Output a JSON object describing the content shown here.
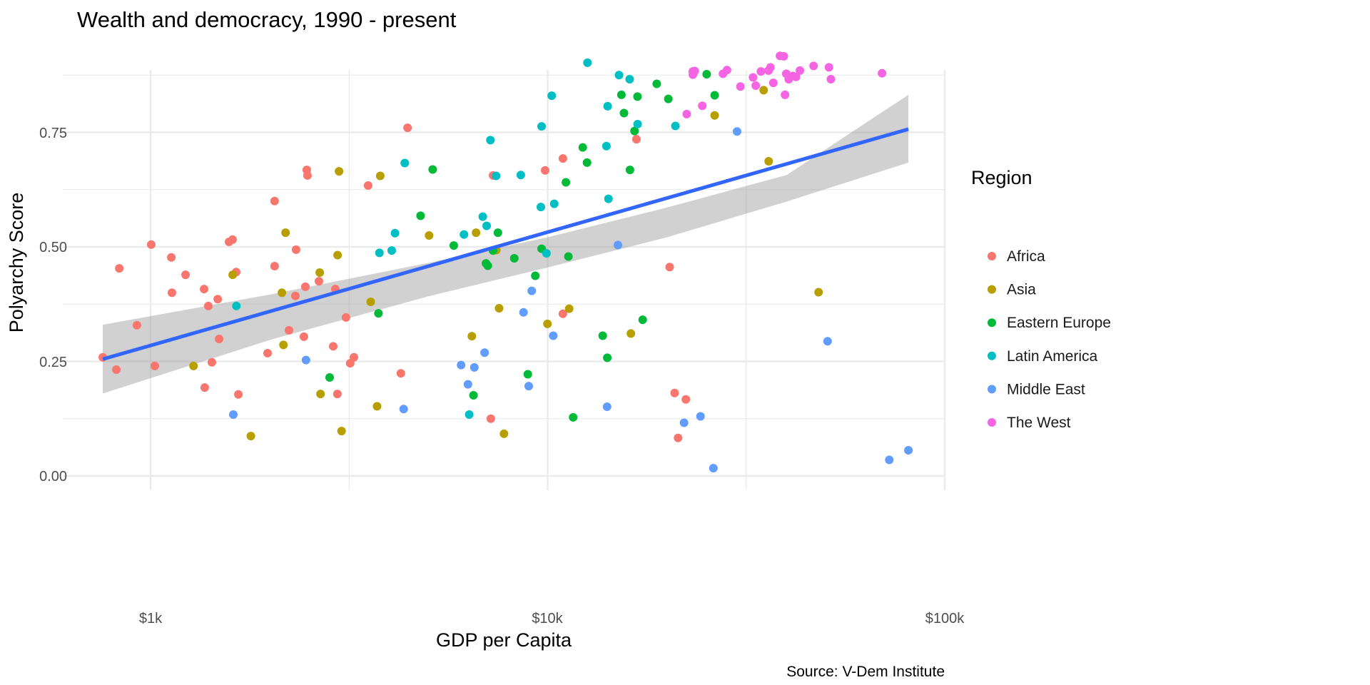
{
  "chart_data": {
    "type": "scatter",
    "title": "Wealth and democracy, 1990 - present",
    "xlabel": "GDP per Capita",
    "ylabel": "Polyarchy Score",
    "caption": "Source: V-Dem Institute",
    "x_scale": "log10",
    "xlim": [
      630,
      100000
    ],
    "ylim": [
      -0.02,
      0.96
    ],
    "x_ticks": [
      {
        "value": 1000,
        "label": "$1k"
      },
      {
        "value": 10000,
        "label": "$10k"
      },
      {
        "value": 100000,
        "label": "$100k"
      }
    ],
    "y_ticks": [
      {
        "value": 0.0,
        "label": "0.00"
      },
      {
        "value": 0.25,
        "label": "0.25"
      },
      {
        "value": 0.5,
        "label": "0.50"
      },
      {
        "value": 0.75,
        "label": "0.75"
      }
    ],
    "grid": true,
    "legend": {
      "title": "Region",
      "position": "right"
    },
    "trend": {
      "method": "linear (log x)",
      "color": "#3366FF",
      "band_color": "#999999",
      "x": [
        758,
        81000
      ],
      "fit": [
        0.255,
        0.757
      ],
      "lower": [
        0.18,
        0.684
      ],
      "upper": [
        0.33,
        0.832
      ],
      "band_x": [
        758,
        2000,
        5000,
        10000,
        20000,
        40000,
        81000
      ],
      "band_lower": [
        0.18,
        0.297,
        0.392,
        0.455,
        0.521,
        0.599,
        0.684
      ],
      "band_upper": [
        0.33,
        0.396,
        0.465,
        0.521,
        0.586,
        0.657,
        0.832
      ]
    },
    "series": [
      {
        "name": "Africa",
        "color": "#F8766D",
        "points": [
          [
            758,
            0.259
          ],
          [
            820,
            0.232
          ],
          [
            834,
            0.453
          ],
          [
            924,
            0.329
          ],
          [
            1004,
            0.505
          ],
          [
            1025,
            0.24
          ],
          [
            1128,
            0.477
          ],
          [
            1132,
            0.4
          ],
          [
            1225,
            0.439
          ],
          [
            1364,
            0.408
          ],
          [
            1398,
            0.371
          ],
          [
            1369,
            0.193
          ],
          [
            1427,
            0.248
          ],
          [
            1476,
            0.386
          ],
          [
            1488,
            0.299
          ],
          [
            1576,
            0.511
          ],
          [
            1609,
            0.516
          ],
          [
            1643,
            0.445
          ],
          [
            1664,
            0.178
          ],
          [
            1971,
            0.268
          ],
          [
            2053,
            0.6
          ],
          [
            2053,
            0.458
          ],
          [
            2231,
            0.318
          ],
          [
            2316,
            0.393
          ],
          [
            2325,
            0.494
          ],
          [
            2433,
            0.304
          ],
          [
            2454,
            0.413
          ],
          [
            2474,
            0.668
          ],
          [
            2484,
            0.656
          ],
          [
            2655,
            0.425
          ],
          [
            2884,
            0.283
          ],
          [
            2919,
            0.408
          ],
          [
            2954,
            0.179
          ],
          [
            3105,
            0.346
          ],
          [
            3183,
            0.246
          ],
          [
            3252,
            0.259
          ],
          [
            3531,
            0.634
          ],
          [
            4269,
            0.224
          ],
          [
            4438,
            0.76
          ],
          [
            7287,
            0.656
          ],
          [
            7193,
            0.125
          ],
          [
            9855,
            0.667
          ],
          [
            10925,
            0.354
          ],
          [
            10925,
            0.693
          ],
          [
            16738,
            0.735
          ],
          [
            20287,
            0.456
          ],
          [
            20883,
            0.181
          ],
          [
            21305,
            0.083
          ],
          [
            22287,
            0.167
          ]
        ]
      },
      {
        "name": "Asia",
        "color": "#B79F00",
        "points": [
          [
            1283,
            0.24
          ],
          [
            1610,
            0.439
          ],
          [
            1789,
            0.087
          ],
          [
            2142,
            0.4
          ],
          [
            2161,
            0.286
          ],
          [
            2188,
            0.531
          ],
          [
            2667,
            0.444
          ],
          [
            2679,
            0.179
          ],
          [
            2958,
            0.482
          ],
          [
            2983,
            0.665
          ],
          [
            3027,
            0.098
          ],
          [
            3585,
            0.38
          ],
          [
            3719,
            0.152
          ],
          [
            3788,
            0.655
          ],
          [
            5028,
            0.525
          ],
          [
            6444,
            0.305
          ],
          [
            6603,
            0.531
          ],
          [
            7427,
            0.493
          ],
          [
            7547,
            0.366
          ],
          [
            7764,
            0.092
          ],
          [
            9990,
            0.332
          ],
          [
            11329,
            0.365
          ],
          [
            16205,
            0.311
          ],
          [
            26340,
            0.787
          ],
          [
            34998,
            0.842
          ],
          [
            36021,
            0.687
          ],
          [
            48123,
            0.401
          ]
        ]
      },
      {
        "name": "Eastern Europe",
        "color": "#00BA38",
        "points": [
          [
            2825,
            0.215
          ],
          [
            3749,
            0.355
          ],
          [
            4786,
            0.568
          ],
          [
            5134,
            0.669
          ],
          [
            5802,
            0.503
          ],
          [
            6505,
            0.176
          ],
          [
            6994,
            0.464
          ],
          [
            7069,
            0.459
          ],
          [
            7286,
            0.492
          ],
          [
            7495,
            0.531
          ],
          [
            8241,
            0.475
          ],
          [
            8914,
            0.222
          ],
          [
            9310,
            0.437
          ],
          [
            9655,
            0.496
          ],
          [
            11118,
            0.641
          ],
          [
            11278,
            0.479
          ],
          [
            11594,
            0.128
          ],
          [
            12258,
            0.717
          ],
          [
            12567,
            0.684
          ],
          [
            13762,
            0.306
          ],
          [
            14132,
            0.258
          ],
          [
            15338,
            0.832
          ],
          [
            15569,
            0.792
          ],
          [
            16118,
            0.668
          ],
          [
            16551,
            0.753
          ],
          [
            16837,
            0.828
          ],
          [
            17352,
            0.341
          ],
          [
            18826,
            0.856
          ],
          [
            20134,
            0.823
          ],
          [
            25148,
            0.877
          ],
          [
            26341,
            0.831
          ]
        ]
      },
      {
        "name": "Latin America",
        "color": "#00BFC4",
        "points": [
          [
            1645,
            0.371
          ],
          [
            3770,
            0.487
          ],
          [
            4049,
            0.492
          ],
          [
            4127,
            0.53
          ],
          [
            4367,
            0.683
          ],
          [
            6156,
            0.527
          ],
          [
            6346,
            0.134
          ],
          [
            6865,
            0.566
          ],
          [
            7021,
            0.546
          ],
          [
            7175,
            0.733
          ],
          [
            7417,
            0.655
          ],
          [
            8559,
            0.657
          ],
          [
            9615,
            0.587
          ],
          [
            9656,
            0.763
          ],
          [
            9932,
            0.486
          ],
          [
            10239,
            0.83
          ],
          [
            10389,
            0.594
          ],
          [
            12599,
            0.902
          ],
          [
            14062,
            0.72
          ],
          [
            14161,
            0.807
          ],
          [
            14229,
            0.605
          ],
          [
            15126,
            0.875
          ],
          [
            16088,
            0.866
          ],
          [
            16849,
            0.768
          ],
          [
            20979,
            0.764
          ]
        ]
      },
      {
        "name": "Middle East",
        "color": "#619CFF",
        "points": [
          [
            1616,
            0.134
          ],
          [
            2463,
            0.253
          ],
          [
            4339,
            0.146
          ],
          [
            6054,
            0.242
          ],
          [
            6299,
            0.2
          ],
          [
            6537,
            0.237
          ],
          [
            6939,
            0.269
          ],
          [
            8694,
            0.357
          ],
          [
            8960,
            0.196
          ],
          [
            9119,
            0.404
          ],
          [
            10329,
            0.306
          ],
          [
            14114,
            0.151
          ],
          [
            15031,
            0.504
          ],
          [
            22057,
            0.116
          ],
          [
            24262,
            0.13
          ],
          [
            26144,
            0.017
          ],
          [
            29993,
            0.752
          ],
          [
            50700,
            0.294
          ],
          [
            72500,
            0.035
          ],
          [
            81000,
            0.056
          ]
        ]
      },
      {
        "name": "The West",
        "color": "#F564E3",
        "points": [
          [
            22400,
            0.79
          ],
          [
            23212,
            0.876
          ],
          [
            23456,
            0.884
          ],
          [
            23212,
            0.883
          ],
          [
            24515,
            0.808
          ],
          [
            27640,
            0.878
          ],
          [
            28290,
            0.886
          ],
          [
            30580,
            0.85
          ],
          [
            32900,
            0.87
          ],
          [
            33426,
            0.852
          ],
          [
            34445,
            0.883
          ],
          [
            35998,
            0.885
          ],
          [
            36412,
            0.892
          ],
          [
            37009,
            0.858
          ],
          [
            38470,
            0.917
          ],
          [
            39340,
            0.916
          ],
          [
            39610,
            0.832
          ],
          [
            39900,
            0.878
          ],
          [
            40470,
            0.866
          ],
          [
            41490,
            0.873
          ],
          [
            42200,
            0.871
          ],
          [
            43180,
            0.885
          ],
          [
            46750,
            0.895
          ],
          [
            51100,
            0.892
          ],
          [
            51680,
            0.866
          ],
          [
            69520,
            0.879
          ]
        ]
      }
    ]
  }
}
